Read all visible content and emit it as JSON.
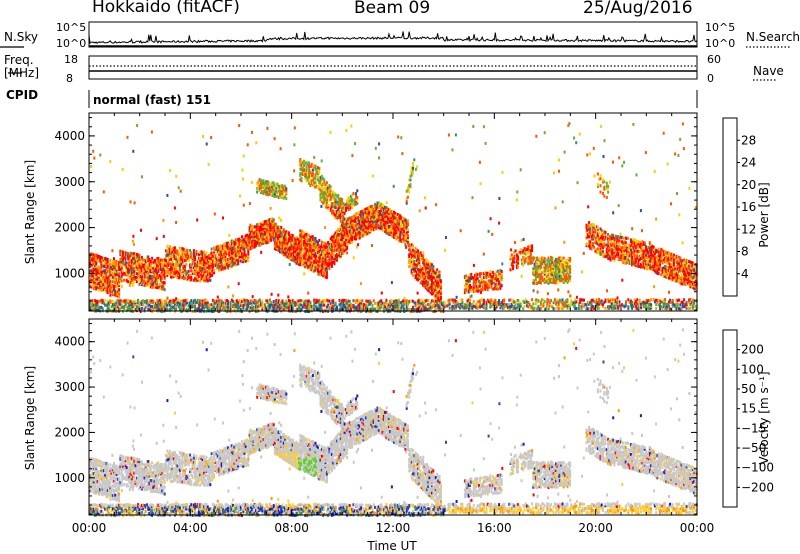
{
  "header": {
    "site": "Hokkaido (fitACF)",
    "beam": "Beam 09",
    "date": "25/Aug/2016"
  },
  "top_panels": {
    "nsky_label": "N.Sky",
    "nsky_ticks": [
      "10^5",
      "10^0"
    ],
    "nsearch_label": "N.Search",
    "nsearch_ticks": [
      "10^5",
      "10^0"
    ],
    "freq_label": "Freq.",
    "freq_unit": "[MHz]",
    "freq_ticks": [
      "18",
      "8"
    ],
    "nave_label": "Nave",
    "nave_ticks": [
      "60",
      "0"
    ],
    "cpid_label": "CPID",
    "cpid_value": "normal (fast) 151"
  },
  "chart_data": [
    {
      "type": "heatmap",
      "name": "power",
      "ylabel": "Slant Range [km]",
      "yticks": [
        "4000",
        "3000",
        "2000",
        "1000"
      ],
      "ylim": [
        180,
        4500
      ],
      "xlim": [
        0,
        24
      ],
      "colorbar": {
        "label": "Power [dB]",
        "ticks": [
          "28",
          "24",
          "20",
          "16",
          "12",
          "8",
          "4"
        ],
        "colors": [
          "#ff0000",
          "#ff5500",
          "#ff9900",
          "#ffcc00",
          "#66b032",
          "#3a8c6e",
          "#2a4fa8",
          "#0000ff"
        ]
      }
    },
    {
      "type": "heatmap",
      "name": "velocity",
      "ylabel": "Slant Range [km]",
      "yticks": [
        "4000",
        "3000",
        "2000",
        "1000"
      ],
      "ylim": [
        180,
        4500
      ],
      "xlim": [
        0,
        24
      ],
      "colorbar": {
        "label": "Velocity [m s⁻¹]",
        "ticks": [
          "200",
          "100",
          "50",
          "15",
          "−15",
          "−50",
          "−100",
          "−200"
        ],
        "colors": [
          "#1a1acc",
          "#2a4fa8",
          "#3a8c6e",
          "#66cc33",
          "#c8c8c8",
          "#ffcc33",
          "#ff9900",
          "#ff5500",
          "#ff0000"
        ]
      }
    }
  ],
  "x_axis": {
    "ticks": [
      "00:00",
      "04:00",
      "08:00",
      "12:00",
      "16:00",
      "20:00",
      "00:00"
    ],
    "label": "Time UT"
  }
}
